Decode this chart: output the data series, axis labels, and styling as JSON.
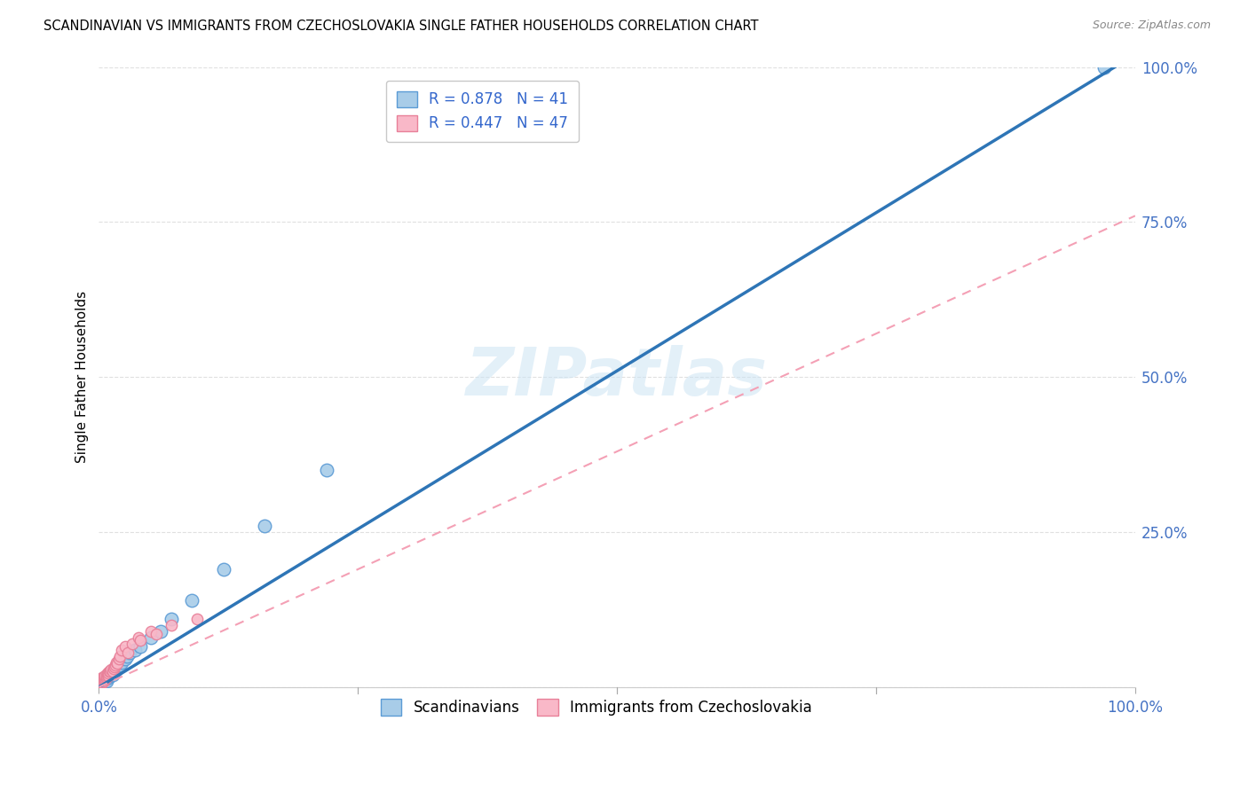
{
  "title": "SCANDINAVIAN VS IMMIGRANTS FROM CZECHOSLOVAKIA SINGLE FATHER HOUSEHOLDS CORRELATION CHART",
  "source": "Source: ZipAtlas.com",
  "ylabel": "Single Father Households",
  "xlim": [
    0,
    1.0
  ],
  "ylim": [
    0,
    1.0
  ],
  "ytick_positions": [
    0.0,
    0.25,
    0.5,
    0.75,
    1.0
  ],
  "ytick_labels": [
    "",
    "25.0%",
    "50.0%",
    "75.0%",
    "100.0%"
  ],
  "xtick_positions": [
    0.0,
    0.25,
    0.5,
    0.75,
    1.0
  ],
  "xtick_labels": [
    "0.0%",
    "",
    "",
    "",
    "100.0%"
  ],
  "legend_r1": "R = 0.878",
  "legend_n1": "N = 41",
  "legend_r2": "R = 0.447",
  "legend_n2": "N = 47",
  "watermark": "ZIPatlas",
  "blue_scatter_color": "#a8cce8",
  "blue_edge_color": "#5b9bd5",
  "pink_scatter_color": "#f9b8c8",
  "pink_edge_color": "#e88099",
  "line_blue_color": "#2e75b6",
  "line_pink_color": "#f4a0b5",
  "tick_label_color": "#4472C4",
  "grid_color": "#e0e0e0",
  "scandinavian_x": [
    0.001,
    0.002,
    0.002,
    0.003,
    0.003,
    0.004,
    0.004,
    0.005,
    0.006,
    0.006,
    0.007,
    0.007,
    0.008,
    0.009,
    0.01,
    0.01,
    0.011,
    0.012,
    0.012,
    0.013,
    0.014,
    0.015,
    0.016,
    0.017,
    0.018,
    0.019,
    0.02,
    0.022,
    0.025,
    0.027,
    0.03,
    0.035,
    0.04,
    0.05,
    0.06,
    0.07,
    0.09,
    0.12,
    0.16,
    0.22,
    0.97
  ],
  "scandinavian_y": [
    0.005,
    0.005,
    0.008,
    0.005,
    0.01,
    0.008,
    0.01,
    0.01,
    0.01,
    0.012,
    0.01,
    0.015,
    0.015,
    0.015,
    0.018,
    0.02,
    0.02,
    0.02,
    0.025,
    0.02,
    0.025,
    0.025,
    0.03,
    0.03,
    0.03,
    0.035,
    0.035,
    0.04,
    0.045,
    0.05,
    0.055,
    0.06,
    0.065,
    0.08,
    0.09,
    0.11,
    0.14,
    0.19,
    0.26,
    0.35,
    1.0
  ],
  "czech_x": [
    0.001,
    0.001,
    0.001,
    0.002,
    0.002,
    0.002,
    0.002,
    0.003,
    0.003,
    0.003,
    0.003,
    0.004,
    0.004,
    0.004,
    0.005,
    0.005,
    0.005,
    0.006,
    0.006,
    0.006,
    0.007,
    0.007,
    0.008,
    0.008,
    0.009,
    0.009,
    0.01,
    0.011,
    0.012,
    0.013,
    0.014,
    0.015,
    0.016,
    0.017,
    0.018,
    0.019,
    0.02,
    0.022,
    0.025,
    0.028,
    0.032,
    0.038,
    0.04,
    0.05,
    0.055,
    0.07,
    0.095
  ],
  "czech_y": [
    0.003,
    0.005,
    0.007,
    0.005,
    0.007,
    0.01,
    0.012,
    0.007,
    0.009,
    0.012,
    0.015,
    0.01,
    0.013,
    0.016,
    0.01,
    0.013,
    0.015,
    0.012,
    0.015,
    0.018,
    0.015,
    0.018,
    0.02,
    0.022,
    0.018,
    0.022,
    0.025,
    0.025,
    0.028,
    0.025,
    0.03,
    0.032,
    0.035,
    0.04,
    0.038,
    0.045,
    0.05,
    0.06,
    0.065,
    0.055,
    0.07,
    0.08,
    0.075,
    0.09,
    0.085,
    0.1,
    0.11
  ],
  "blue_line_x0": 0.0,
  "blue_line_y0": 0.0,
  "blue_line_x1": 1.0,
  "blue_line_y1": 1.02,
  "pink_line_x0": 0.0,
  "pink_line_y0": 0.0,
  "pink_line_x1": 1.0,
  "pink_line_y1": 0.76
}
